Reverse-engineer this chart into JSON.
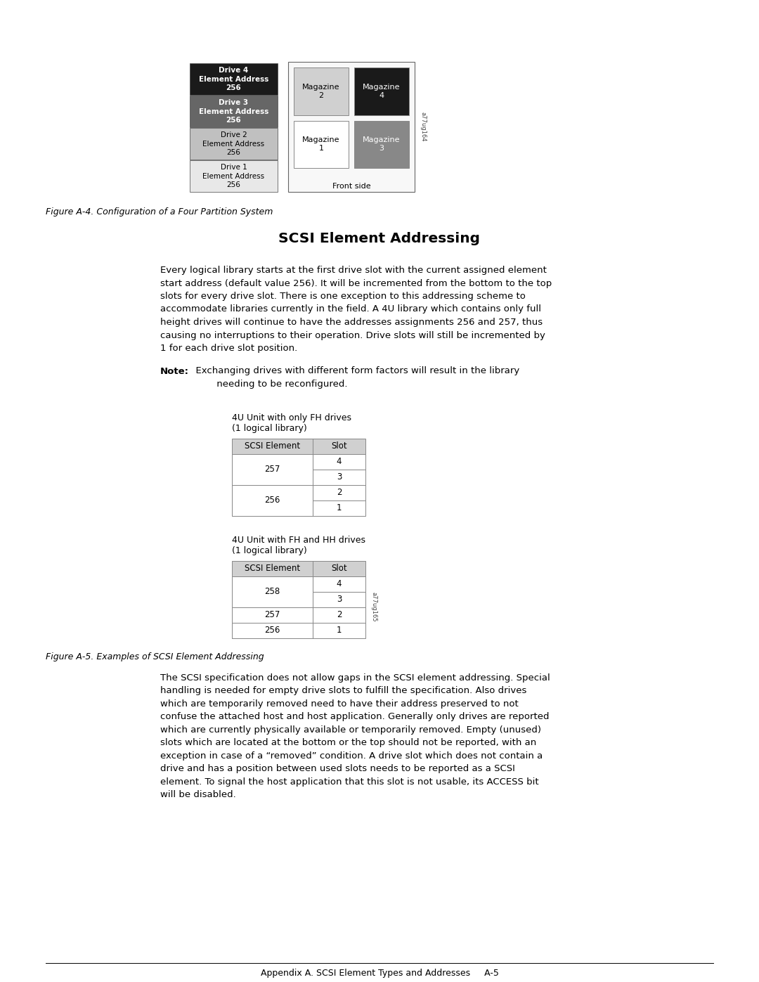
{
  "page_bg": "#ffffff",
  "fig_width": 10.8,
  "fig_height": 13.97,
  "diagram": {
    "drives": [
      {
        "label": "Drive 4\nElement Address\n256",
        "bg": "#1a1a1a",
        "fg": "#ffffff",
        "bold": true
      },
      {
        "label": "Drive 3\nElement Address\n256",
        "bg": "#666666",
        "fg": "#ffffff",
        "bold": true
      },
      {
        "label": "Drive 2\nElement Address\n256",
        "bg": "#c0c0c0",
        "fg": "#000000",
        "bold": false
      },
      {
        "label": "Drive 1\nElement Address\n256",
        "bg": "#e8e8e8",
        "fg": "#000000",
        "bold": false
      }
    ],
    "magazines_top": [
      {
        "label": "Magazine\n2",
        "bg": "#d0d0d0",
        "fg": "#000000"
      },
      {
        "label": "Magazine\n4",
        "bg": "#1a1a1a",
        "fg": "#ffffff"
      }
    ],
    "magazines_bottom": [
      {
        "label": "Magazine\n1",
        "bg": "#ffffff",
        "fg": "#000000"
      },
      {
        "label": "Magazine\n3",
        "bg": "#888888",
        "fg": "#ffffff"
      }
    ],
    "front_side_label": "Front side",
    "watermark": "a77ug164"
  },
  "fig_caption": "Figure A-4. Configuration of a Four Partition System",
  "section_title": "SCSI Element Addressing",
  "body_text": "Every logical library starts at the first drive slot with the current assigned element\nstart address (default value 256). It will be incremented from the bottom to the top\nslots for every drive slot. There is one exception to this addressing scheme to\naccommodate libraries currently in the field. A 4U library which contains only full\nheight drives will continue to have the addresses assignments 256 and 257, thus\ncausing no interruptions to their operation. Drive slots will still be incremented by\n1 for each drive slot position.",
  "note_text_line1": "  Exchanging drives with different form factors will result in the library",
  "note_text_line2": "         needing to be reconfigured.",
  "table1": {
    "title1": "4U Unit with only FH drives",
    "title2": "(1 logical library)",
    "header": [
      "SCSI Element",
      "Slot"
    ],
    "rows": [
      [
        "257",
        "4"
      ],
      [
        "257",
        "3"
      ],
      [
        "256",
        "2"
      ],
      [
        "256",
        "1"
      ]
    ],
    "merged_col0": [
      [
        "257",
        0,
        1
      ],
      [
        "256",
        2,
        3
      ]
    ]
  },
  "table2": {
    "title1": "4U Unit with FH and HH drives",
    "title2": "(1 logical library)",
    "header": [
      "SCSI Element",
      "Slot"
    ],
    "rows": [
      [
        "258",
        "4"
      ],
      [
        "258",
        "3"
      ],
      [
        "257",
        "2"
      ],
      [
        "256",
        "1"
      ]
    ],
    "merged_col0": [
      [
        "258",
        0,
        1
      ],
      [
        "257",
        2,
        2
      ],
      [
        "256",
        3,
        3
      ]
    ]
  },
  "watermark2": "a77ug165",
  "fig5_caption": "Figure A-5. Examples of SCSI Element Addressing",
  "body_text2": "The SCSI specification does not allow gaps in the SCSI element addressing. Special\nhandling is needed for empty drive slots to fulfill the specification. Also drives\nwhich are temporarily removed need to have their address preserved to not\nconfuse the attached host and host application. Generally only drives are reported\nwhich are currently physically available or temporarily removed. Empty (unused)\nslots which are located at the bottom or the top should not be reported, with an\nexception in case of a “removed” condition. A drive slot which does not contain a\ndrive and has a position between used slots needs to be reported as a SCSI\nelement. To signal the host application that this slot is not usable, its ACCESS bit\nwill be disabled.",
  "footer": "Appendix A. SCSI Element Types and Addresses     A-5"
}
